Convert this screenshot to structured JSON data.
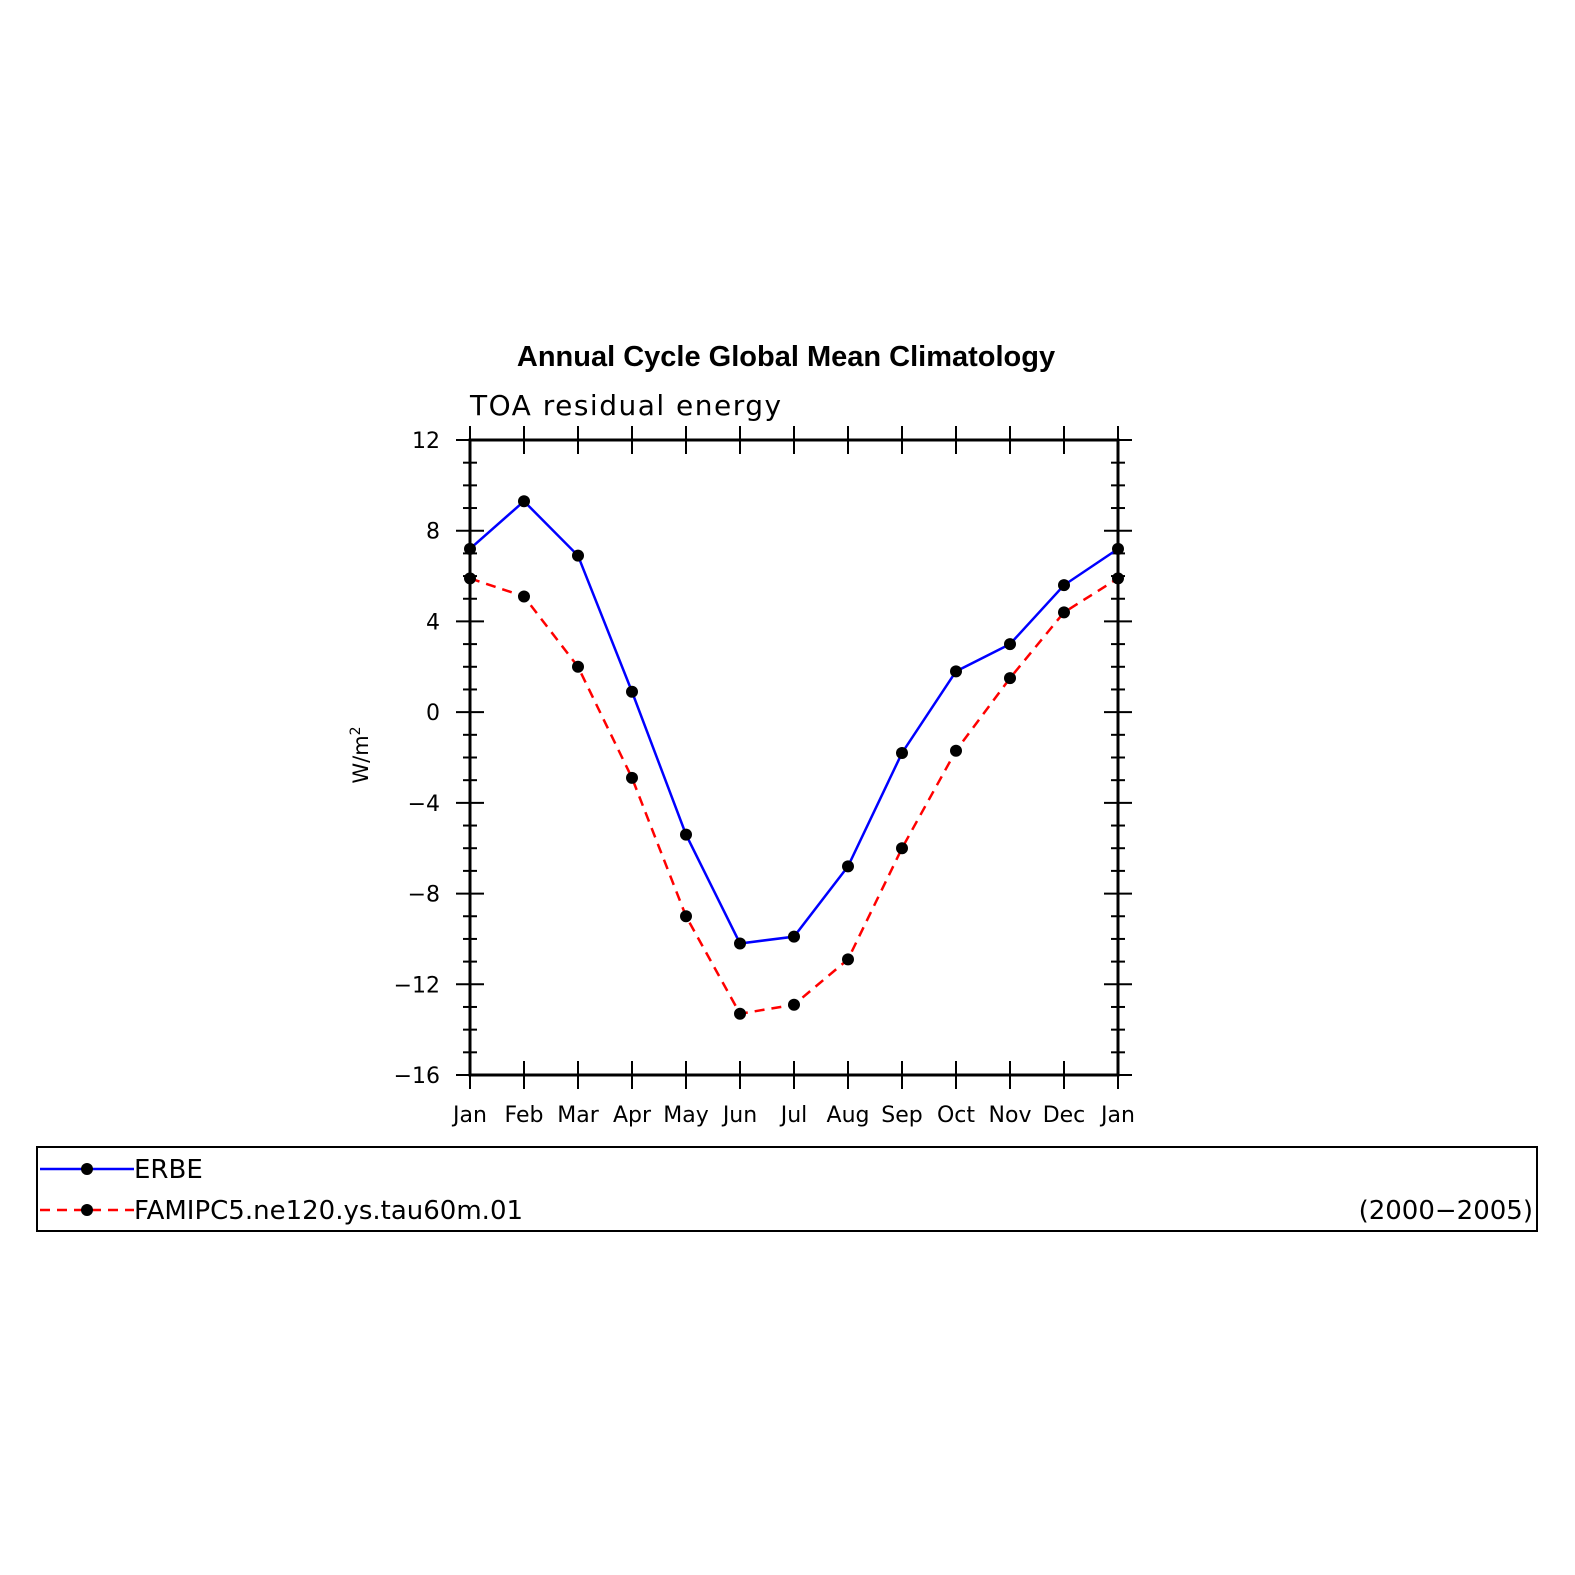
{
  "chart_data": {
    "type": "line",
    "title": "Annual Cycle Global Mean Climatology",
    "subtitle": "TOA residual energy",
    "ylabel": "W/m",
    "ylabel_superscript": "2",
    "categories": [
      "Jan",
      "Feb",
      "Mar",
      "Apr",
      "May",
      "Jun",
      "Jul",
      "Aug",
      "Sep",
      "Oct",
      "Nov",
      "Dec",
      "Jan"
    ],
    "ylim": [
      -16,
      12
    ],
    "yticks": [
      12,
      8,
      4,
      0,
      -4,
      -8,
      -12,
      -16
    ],
    "ytick_labels": [
      "12",
      "8",
      "4",
      "0",
      "−4",
      "−8",
      "−12",
      "−16"
    ],
    "grid": false,
    "legend_position": "bottom",
    "series": [
      {
        "name": "ERBE",
        "color": "#0000ff",
        "line_style": "solid",
        "marker": "filled-circle",
        "values": [
          7.2,
          9.3,
          6.9,
          0.9,
          -5.4,
          -10.2,
          -9.9,
          -6.8,
          -1.8,
          1.8,
          3.0,
          5.6,
          7.2
        ]
      },
      {
        "name": "FAMIPC5.ne120.ys.tau60m.01",
        "color": "#ff0000",
        "line_style": "dashed",
        "marker": "filled-circle",
        "values": [
          5.9,
          5.1,
          2.0,
          -2.9,
          -9.0,
          -13.3,
          -12.9,
          -10.9,
          -6.0,
          -1.7,
          1.5,
          4.4,
          5.9
        ]
      }
    ],
    "legend_note": "(2000−2005)"
  }
}
